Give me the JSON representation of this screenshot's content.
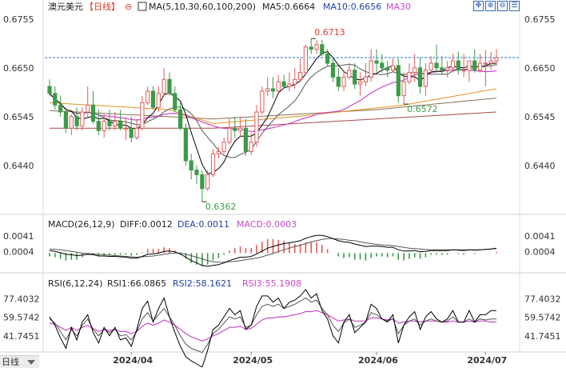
{
  "header": {
    "symbol": "澳元美元",
    "period": "【日线】",
    "settings_glyph": "⊖",
    "ma_label": "MA(5,10,30,60,100,200)",
    "ma5_label": "MA5:0.6664",
    "ma10_label": "MA10:0.6656",
    "ma30_label": "MA30"
  },
  "toolbar": {
    "icons": [
      "move-icon",
      "zoom-in-icon",
      "zoom-out-icon",
      "chart-list-icon"
    ],
    "glyphs": [
      "✥",
      "⊕",
      "⊖",
      "☰"
    ]
  },
  "collapse": {
    "label": "日线",
    "icon": "triangle-down-icon"
  },
  "panels": {
    "macd": {
      "label": "MACD(26,12,9)",
      "diff": "DIFF:0.0012",
      "dea": "DEA:0.0011",
      "macd": "MACD:0.0003"
    },
    "rsi": {
      "label": "RSI(6,12,24)",
      "rsi1": "RSI1:66.0865",
      "rsi2": "RSI2:58.1621",
      "rsi3": "RSI3:55.1908"
    }
  },
  "colors": {
    "up": "#e25b5b",
    "down": "#3d9a48",
    "ma5": "#000000",
    "ma10": "#555555",
    "ma30": "#c94ac9",
    "ma60": "#8a6f55",
    "ma100": "#e3931f",
    "ma200": "#a84c4c",
    "header_red": "#e03a2c",
    "header_blue": "#2045a0",
    "header_purple": "#c94ac9"
  },
  "chart_data": [
    {
      "type": "candlestick",
      "title": "澳元美元【日线】",
      "y_ticks": [
        "0.6755",
        "0.6650",
        "0.6545",
        "0.6440"
      ],
      "ylim": [
        0.6345,
        0.6765
      ],
      "x_ticks": [
        "2024/04",
        "2024/05",
        "2024/06",
        "2024/07"
      ],
      "dates": [
        "2024-03-11",
        "2024-03-12",
        "2024-03-13",
        "2024-03-14",
        "2024-03-15",
        "2024-03-18",
        "2024-03-19",
        "2024-03-20",
        "2024-03-21",
        "2024-03-22",
        "2024-03-25",
        "2024-03-26",
        "2024-03-27",
        "2024-03-28",
        "2024-03-29",
        "2024-04-01",
        "2024-04-02",
        "2024-04-03",
        "2024-04-04",
        "2024-04-05",
        "2024-04-08",
        "2024-04-09",
        "2024-04-10",
        "2024-04-11",
        "2024-04-12",
        "2024-04-15",
        "2024-04-16",
        "2024-04-17",
        "2024-04-18",
        "2024-04-19",
        "2024-04-22",
        "2024-04-23",
        "2024-04-24",
        "2024-04-25",
        "2024-04-26",
        "2024-04-29",
        "2024-04-30",
        "2024-05-01",
        "2024-05-02",
        "2024-05-03",
        "2024-05-06",
        "2024-05-07",
        "2024-05-08",
        "2024-05-09",
        "2024-05-10",
        "2024-05-13",
        "2024-05-14",
        "2024-05-15",
        "2024-05-16",
        "2024-05-17",
        "2024-05-20",
        "2024-05-21",
        "2024-05-22",
        "2024-05-23",
        "2024-05-24",
        "2024-05-27",
        "2024-05-28",
        "2024-05-29",
        "2024-05-30",
        "2024-05-31",
        "2024-06-03",
        "2024-06-04",
        "2024-06-05",
        "2024-06-06",
        "2024-06-07",
        "2024-06-10",
        "2024-06-11",
        "2024-06-12",
        "2024-06-13",
        "2024-06-14",
        "2024-06-17",
        "2024-06-18",
        "2024-06-19",
        "2024-06-20",
        "2024-06-21",
        "2024-06-24",
        "2024-06-25",
        "2024-06-26",
        "2024-06-27",
        "2024-06-28",
        "2024-07-01",
        "2024-07-02",
        "2024-07-03"
      ],
      "open": [
        0.661,
        0.6595,
        0.657,
        0.6555,
        0.652,
        0.6545,
        0.6525,
        0.6555,
        0.657,
        0.6535,
        0.6515,
        0.6535,
        0.6525,
        0.6535,
        0.652,
        0.652,
        0.65,
        0.652,
        0.6575,
        0.66,
        0.6565,
        0.6595,
        0.6625,
        0.6595,
        0.656,
        0.652,
        0.645,
        0.643,
        0.642,
        0.639,
        0.642,
        0.6465,
        0.647,
        0.649,
        0.652,
        0.6515,
        0.652,
        0.647,
        0.649,
        0.6555,
        0.66,
        0.6605,
        0.66,
        0.662,
        0.661,
        0.6615,
        0.6625,
        0.664,
        0.6695,
        0.669,
        0.67,
        0.668,
        0.666,
        0.663,
        0.661,
        0.663,
        0.6645,
        0.6615,
        0.662,
        0.663,
        0.6665,
        0.666,
        0.665,
        0.6645,
        0.6655,
        0.659,
        0.662,
        0.664,
        0.665,
        0.661,
        0.6645,
        0.666,
        0.665,
        0.6645,
        0.665,
        0.6665,
        0.6645,
        0.6645,
        0.6665,
        0.6645,
        0.666,
        0.666,
        0.6665
      ],
      "high": [
        0.6625,
        0.661,
        0.659,
        0.6565,
        0.655,
        0.6565,
        0.6565,
        0.661,
        0.66,
        0.656,
        0.655,
        0.656,
        0.6555,
        0.656,
        0.654,
        0.6545,
        0.654,
        0.659,
        0.661,
        0.661,
        0.661,
        0.665,
        0.664,
        0.661,
        0.6575,
        0.653,
        0.6465,
        0.644,
        0.643,
        0.643,
        0.6475,
        0.648,
        0.65,
        0.654,
        0.6545,
        0.6545,
        0.654,
        0.651,
        0.657,
        0.661,
        0.663,
        0.663,
        0.6635,
        0.6635,
        0.664,
        0.665,
        0.667,
        0.67,
        0.6713,
        0.671,
        0.671,
        0.669,
        0.667,
        0.665,
        0.6645,
        0.666,
        0.666,
        0.664,
        0.666,
        0.669,
        0.669,
        0.668,
        0.6665,
        0.667,
        0.667,
        0.664,
        0.666,
        0.668,
        0.6672,
        0.666,
        0.6675,
        0.67,
        0.6675,
        0.6665,
        0.668,
        0.6685,
        0.668,
        0.6665,
        0.669,
        0.668,
        0.6688,
        0.6685,
        0.669
      ],
      "low": [
        0.659,
        0.656,
        0.6545,
        0.651,
        0.6505,
        0.6515,
        0.6515,
        0.6545,
        0.653,
        0.6505,
        0.65,
        0.6515,
        0.6515,
        0.6515,
        0.6495,
        0.649,
        0.6495,
        0.6515,
        0.657,
        0.656,
        0.6555,
        0.659,
        0.659,
        0.6555,
        0.6515,
        0.644,
        0.641,
        0.64,
        0.6362,
        0.6385,
        0.6415,
        0.6455,
        0.6465,
        0.6485,
        0.65,
        0.65,
        0.646,
        0.6462,
        0.648,
        0.655,
        0.659,
        0.6585,
        0.6595,
        0.6605,
        0.66,
        0.6605,
        0.662,
        0.6635,
        0.668,
        0.668,
        0.6675,
        0.6655,
        0.662,
        0.66,
        0.66,
        0.6625,
        0.6605,
        0.659,
        0.661,
        0.662,
        0.664,
        0.664,
        0.663,
        0.664,
        0.6575,
        0.6572,
        0.6615,
        0.662,
        0.6595,
        0.659,
        0.6635,
        0.664,
        0.6635,
        0.663,
        0.664,
        0.6635,
        0.663,
        0.662,
        0.664,
        0.664,
        0.661,
        0.6645,
        0.6655
      ],
      "close": [
        0.6595,
        0.657,
        0.6555,
        0.652,
        0.6545,
        0.6525,
        0.6555,
        0.657,
        0.6535,
        0.6515,
        0.6535,
        0.6525,
        0.6535,
        0.652,
        0.652,
        0.65,
        0.652,
        0.6575,
        0.66,
        0.6565,
        0.6595,
        0.6625,
        0.6595,
        0.656,
        0.652,
        0.645,
        0.643,
        0.642,
        0.639,
        0.642,
        0.6465,
        0.647,
        0.649,
        0.652,
        0.6515,
        0.652,
        0.647,
        0.649,
        0.6555,
        0.66,
        0.6605,
        0.66,
        0.662,
        0.661,
        0.6615,
        0.6625,
        0.664,
        0.6695,
        0.669,
        0.67,
        0.668,
        0.666,
        0.663,
        0.661,
        0.663,
        0.6645,
        0.6615,
        0.662,
        0.663,
        0.6665,
        0.666,
        0.665,
        0.6645,
        0.6655,
        0.659,
        0.662,
        0.664,
        0.665,
        0.661,
        0.6645,
        0.666,
        0.665,
        0.6645,
        0.665,
        0.6665,
        0.6645,
        0.6645,
        0.6665,
        0.6645,
        0.666,
        0.666,
        0.6665,
        0.6672
      ],
      "annotations": [
        {
          "label": "0.6713",
          "date": "2024-05-16",
          "value": 0.6713,
          "color": "#e03a2c"
        },
        {
          "label": "0.6362",
          "date": "2024-04-18",
          "value": 0.6362,
          "color": "#3d9a48"
        },
        {
          "label": "0.6572",
          "date": "2024-06-10",
          "value": 0.6572,
          "color": "#3d9a48"
        }
      ],
      "reference_line": 0.6672,
      "moving_averages": [
        "MA5",
        "MA10",
        "MA30",
        "MA60",
        "MA100",
        "MA200"
      ],
      "ma_lines": [
        {
          "name": "MA60",
          "color": "#8a6f55",
          "keys": [
            [
              0,
              0.6558
            ],
            [
              30,
              0.654
            ],
            [
              60,
              0.656
            ],
            [
              82,
              0.6585
            ]
          ]
        },
        {
          "name": "MA100",
          "color": "#e3931f",
          "keys": [
            [
              0,
              0.6575
            ],
            [
              22,
              0.656
            ],
            [
              30,
              0.653
            ],
            [
              45,
              0.6545
            ],
            [
              65,
              0.657
            ],
            [
              82,
              0.6605
            ]
          ]
        },
        {
          "name": "MA200",
          "color": "#a84c4c",
          "keys": [
            [
              0,
              0.652
            ],
            [
              30,
              0.652
            ],
            [
              60,
              0.654
            ],
            [
              82,
              0.6555
            ]
          ]
        }
      ]
    },
    {
      "type": "macd",
      "title": "MACD(26,12,9)",
      "y_ticks": [
        "0.0041",
        "0.0004"
      ],
      "ylim": [
        -0.004,
        0.0055
      ],
      "diff": [
        0.0006,
        0.0004,
        0.0001,
        -0.0003,
        -0.0004,
        -0.0006,
        -0.0005,
        -0.0003,
        -0.0004,
        -0.0007,
        -0.0007,
        -0.0008,
        -0.0008,
        -0.0009,
        -0.001,
        -0.0012,
        -0.0012,
        -0.0008,
        -0.0003,
        -0.0002,
        0.0,
        0.0004,
        0.0005,
        0.0003,
        -0.0002,
        -0.001,
        -0.0018,
        -0.0024,
        -0.003,
        -0.0032,
        -0.003,
        -0.0028,
        -0.0024,
        -0.0018,
        -0.0014,
        -0.001,
        -0.001,
        -0.0008,
        -0.0002,
        0.0005,
        0.0012,
        0.0016,
        0.002,
        0.0023,
        0.0025,
        0.0027,
        0.003,
        0.0036,
        0.004,
        0.0043,
        0.0043,
        0.004,
        0.0035,
        0.003,
        0.0027,
        0.0026,
        0.0022,
        0.0019,
        0.0016,
        0.0017,
        0.0017,
        0.0016,
        0.0014,
        0.0014,
        0.0008,
        0.0005,
        0.0005,
        0.0006,
        0.0003,
        0.0004,
        0.0006,
        0.0006,
        0.0006,
        0.0006,
        0.0008,
        0.0007,
        0.0006,
        0.0008,
        0.0007,
        0.0008,
        0.0009,
        0.001,
        0.0012
      ],
      "dea": [
        0.001,
        0.0009,
        0.0008,
        0.0006,
        0.0004,
        0.0002,
        0.0,
        -0.0001,
        -0.0002,
        -0.0003,
        -0.0004,
        -0.0005,
        -0.0006,
        -0.0007,
        -0.0008,
        -0.0009,
        -0.001,
        -0.0009,
        -0.0008,
        -0.0007,
        -0.0005,
        -0.0003,
        -0.0001,
        0.0,
        0.0,
        -0.0003,
        -0.0006,
        -0.001,
        -0.0014,
        -0.0018,
        -0.0021,
        -0.0022,
        -0.0022,
        -0.0021,
        -0.002,
        -0.0018,
        -0.0016,
        -0.0014,
        -0.0012,
        -0.0009,
        -0.0005,
        -0.0001,
        0.0004,
        0.0008,
        0.0012,
        0.0016,
        0.0019,
        0.0023,
        0.0027,
        0.003,
        0.0033,
        0.0035,
        0.0035,
        0.0034,
        0.0033,
        0.0031,
        0.003,
        0.0027,
        0.0025,
        0.0023,
        0.0021,
        0.002,
        0.0019,
        0.0018,
        0.0016,
        0.0014,
        0.0012,
        0.0011,
        0.001,
        0.0009,
        0.0008,
        0.0008,
        0.0008,
        0.0008,
        0.0008,
        0.0008,
        0.0008,
        0.0008,
        0.0008,
        0.0008,
        0.0009,
        0.001,
        0.0011
      ],
      "hist": [
        -0.0008,
        -0.001,
        -0.0014,
        -0.0018,
        -0.0016,
        -0.0016,
        -0.001,
        -0.0004,
        -0.0004,
        -0.0008,
        -0.0006,
        -0.0006,
        -0.0004,
        -0.0004,
        -0.0004,
        -0.0006,
        -0.0004,
        0.0002,
        0.001,
        0.001,
        0.001,
        0.0014,
        0.0012,
        0.0006,
        -0.0004,
        -0.0014,
        -0.0024,
        -0.0028,
        -0.0032,
        -0.0028,
        -0.0018,
        -0.0012,
        -0.0004,
        0.0006,
        0.0012,
        0.0016,
        0.0012,
        0.0012,
        0.002,
        0.0028,
        0.0034,
        0.0034,
        0.0032,
        0.003,
        0.0026,
        0.0022,
        0.0022,
        0.0026,
        0.0026,
        0.0026,
        0.002,
        0.001,
        0.0,
        -0.0008,
        -0.0012,
        -0.001,
        -0.0016,
        -0.0016,
        -0.0018,
        -0.0012,
        -0.0008,
        -0.0008,
        -0.001,
        -0.0008,
        -0.0016,
        -0.0018,
        -0.0014,
        -0.001,
        -0.0014,
        -0.001,
        -0.0004,
        -0.0004,
        -0.0004,
        -0.0004,
        0.0,
        -0.0002,
        -0.0004,
        0.0,
        -0.0002,
        0.0,
        0.0,
        0.0,
        0.0003
      ]
    },
    {
      "type": "rsi",
      "title": "RSI(6,12,24)",
      "y_ticks": [
        "77.4032",
        "59.5742",
        "41.7451"
      ],
      "ylim": [
        28,
        86
      ],
      "rsi1": [
        60,
        52,
        40,
        30,
        50,
        38,
        55,
        62,
        45,
        35,
        50,
        42,
        50,
        38,
        40,
        32,
        48,
        68,
        75,
        55,
        68,
        78,
        60,
        45,
        32,
        22,
        18,
        15,
        12,
        28,
        48,
        52,
        60,
        68,
        62,
        66,
        48,
        52,
        70,
        80,
        80,
        74,
        78,
        68,
        74,
        76,
        80,
        86,
        78,
        82,
        66,
        58,
        42,
        35,
        55,
        62,
        45,
        50,
        55,
        72,
        68,
        58,
        55,
        62,
        35,
        52,
        60,
        65,
        48,
        60,
        65,
        58,
        55,
        58,
        66,
        55,
        55,
        66,
        55,
        62,
        62,
        66,
        66
      ],
      "rsi2": [
        58,
        54,
        46,
        38,
        48,
        42,
        52,
        58,
        48,
        42,
        48,
        45,
        48,
        42,
        43,
        38,
        46,
        58,
        64,
        56,
        62,
        68,
        60,
        52,
        42,
        34,
        30,
        28,
        26,
        34,
        44,
        48,
        54,
        60,
        58,
        60,
        50,
        52,
        62,
        70,
        72,
        70,
        72,
        68,
        70,
        72,
        75,
        78,
        74,
        76,
        68,
        62,
        52,
        46,
        54,
        58,
        50,
        52,
        55,
        64,
        62,
        58,
        56,
        58,
        44,
        52,
        56,
        58,
        52,
        56,
        58,
        56,
        55,
        56,
        60,
        55,
        55,
        58,
        55,
        58,
        57,
        58,
        58
      ],
      "rsi3": [
        54,
        53,
        50,
        47,
        50,
        47,
        50,
        52,
        49,
        46,
        48,
        47,
        48,
        46,
        46,
        44,
        46,
        51,
        54,
        52,
        54,
        57,
        55,
        52,
        48,
        44,
        41,
        39,
        37,
        39,
        42,
        44,
        47,
        50,
        50,
        51,
        48,
        49,
        53,
        57,
        59,
        59,
        60,
        60,
        61,
        62,
        63,
        65,
        65,
        66,
        64,
        62,
        59,
        56,
        57,
        58,
        56,
        56,
        56,
        59,
        59,
        58,
        57,
        58,
        54,
        55,
        56,
        56,
        55,
        56,
        56,
        56,
        55,
        55,
        56,
        55,
        55,
        56,
        55,
        56,
        56,
        55,
        55
      ]
    }
  ]
}
